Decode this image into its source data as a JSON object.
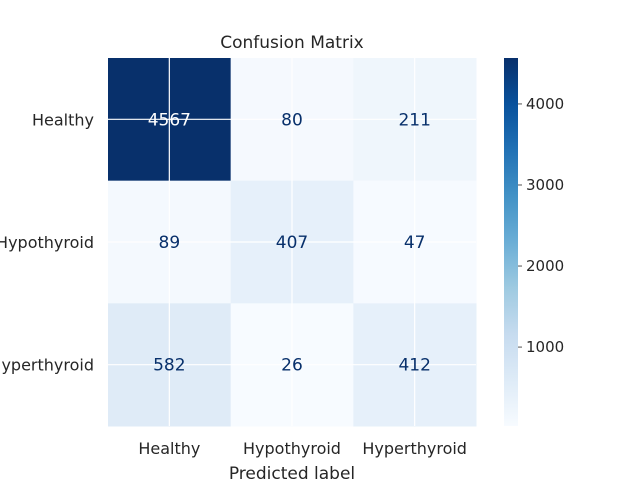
{
  "chart_data": {
    "type": "heatmap",
    "title": "Confusion Matrix",
    "xlabel": "Predicted label",
    "ylabel": "",
    "x_categories": [
      "Healthy",
      "Hypothyroid",
      "Hyperthyroid"
    ],
    "y_categories": [
      "Healthy",
      "Hypothyroid",
      "Hyperthyroid"
    ],
    "matrix": [
      [
        4567,
        80,
        211
      ],
      [
        89,
        407,
        47
      ],
      [
        582,
        26,
        412
      ]
    ],
    "colormap": "Blues",
    "color_low": "#f7fbff",
    "color_high": "#08306b",
    "text_light": "#ffffff",
    "text_dark": "#08306b",
    "colorbar": {
      "min": 26,
      "max": 4567,
      "ticks": [
        1000,
        2000,
        3000,
        4000
      ],
      "tick_labels": [
        "1000",
        "2000",
        "3000",
        "4000"
      ]
    },
    "grid": true
  }
}
